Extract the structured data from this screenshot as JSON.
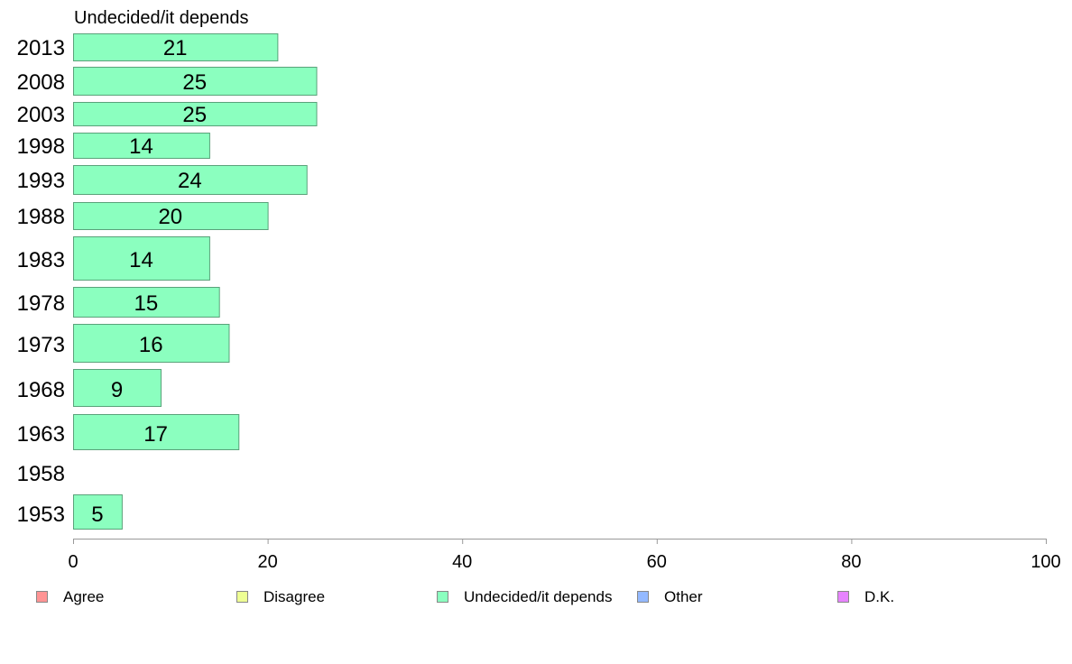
{
  "chart_data": {
    "type": "bar",
    "orientation": "horizontal",
    "title": "Undecided/it depends",
    "categories": [
      "2013",
      "2008",
      "2003",
      "1998",
      "1993",
      "1988",
      "1983",
      "1978",
      "1973",
      "1968",
      "1963",
      "1958",
      "1953"
    ],
    "series": [
      {
        "name": "Undecided/it depends",
        "values": [
          21,
          25,
          25,
          14,
          24,
          20,
          14,
          15,
          16,
          9,
          17,
          null,
          5
        ]
      }
    ],
    "xlim": [
      0,
      100
    ],
    "x_ticks": [
      "0",
      "20",
      "40",
      "60",
      "80",
      "100"
    ],
    "grid": false,
    "legend": {
      "placement": "bottom",
      "entries": [
        {
          "label": "Agree",
          "color": "#ff9494"
        },
        {
          "label": "Disagree",
          "color": "#eeff94"
        },
        {
          "label": "Undecided/it depends",
          "color": "#8bffbf"
        },
        {
          "label": "Other",
          "color": "#94b9ff"
        },
        {
          "label": "D.K.",
          "color": "#e783ff"
        }
      ]
    },
    "bar_color": "#8bffbf",
    "bar_stroke": "#5aa27a",
    "axis_color": "#999999"
  }
}
